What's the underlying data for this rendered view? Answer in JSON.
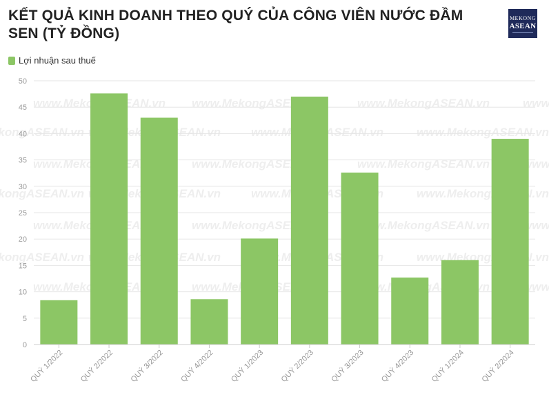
{
  "title": "KẾT QUẢ KINH DOANH THEO QUÝ CỦA CÔNG VIÊN NƯỚC ĐẦM SEN (TỶ ĐỒNG)",
  "logo": {
    "line1": "MEKONG",
    "line2": "ASEAN"
  },
  "watermark": "www.MekongASEAN.vn",
  "colors": {
    "bar": "#8cc665",
    "grid": "#e6e6e6",
    "axis_text": "#999999",
    "watermark": "#eeeeee"
  },
  "chart_data": {
    "type": "bar",
    "categories": [
      "QUÝ 1/2022",
      "QUÝ 2/2022",
      "QUÝ 3/2022",
      "QUÝ 4/2022",
      "QUÝ 1/2023",
      "QUÝ 2/2023",
      "QUÝ 3/2023",
      "QUÝ 4/2023",
      "QUÝ 1/2024",
      "QUÝ 2/2024"
    ],
    "series": [
      {
        "name": "Lợi nhuận sau thuế",
        "values": [
          8.4,
          47.6,
          43.0,
          8.6,
          20.1,
          47.0,
          32.6,
          12.7,
          16.0,
          39.0
        ]
      }
    ],
    "yticks": [
      0,
      5,
      10,
      15,
      20,
      25,
      30,
      35,
      40,
      45,
      50
    ],
    "ylim": [
      0,
      50
    ],
    "grid": true,
    "legend_position": "top-left",
    "xlabel": "",
    "ylabel": ""
  }
}
